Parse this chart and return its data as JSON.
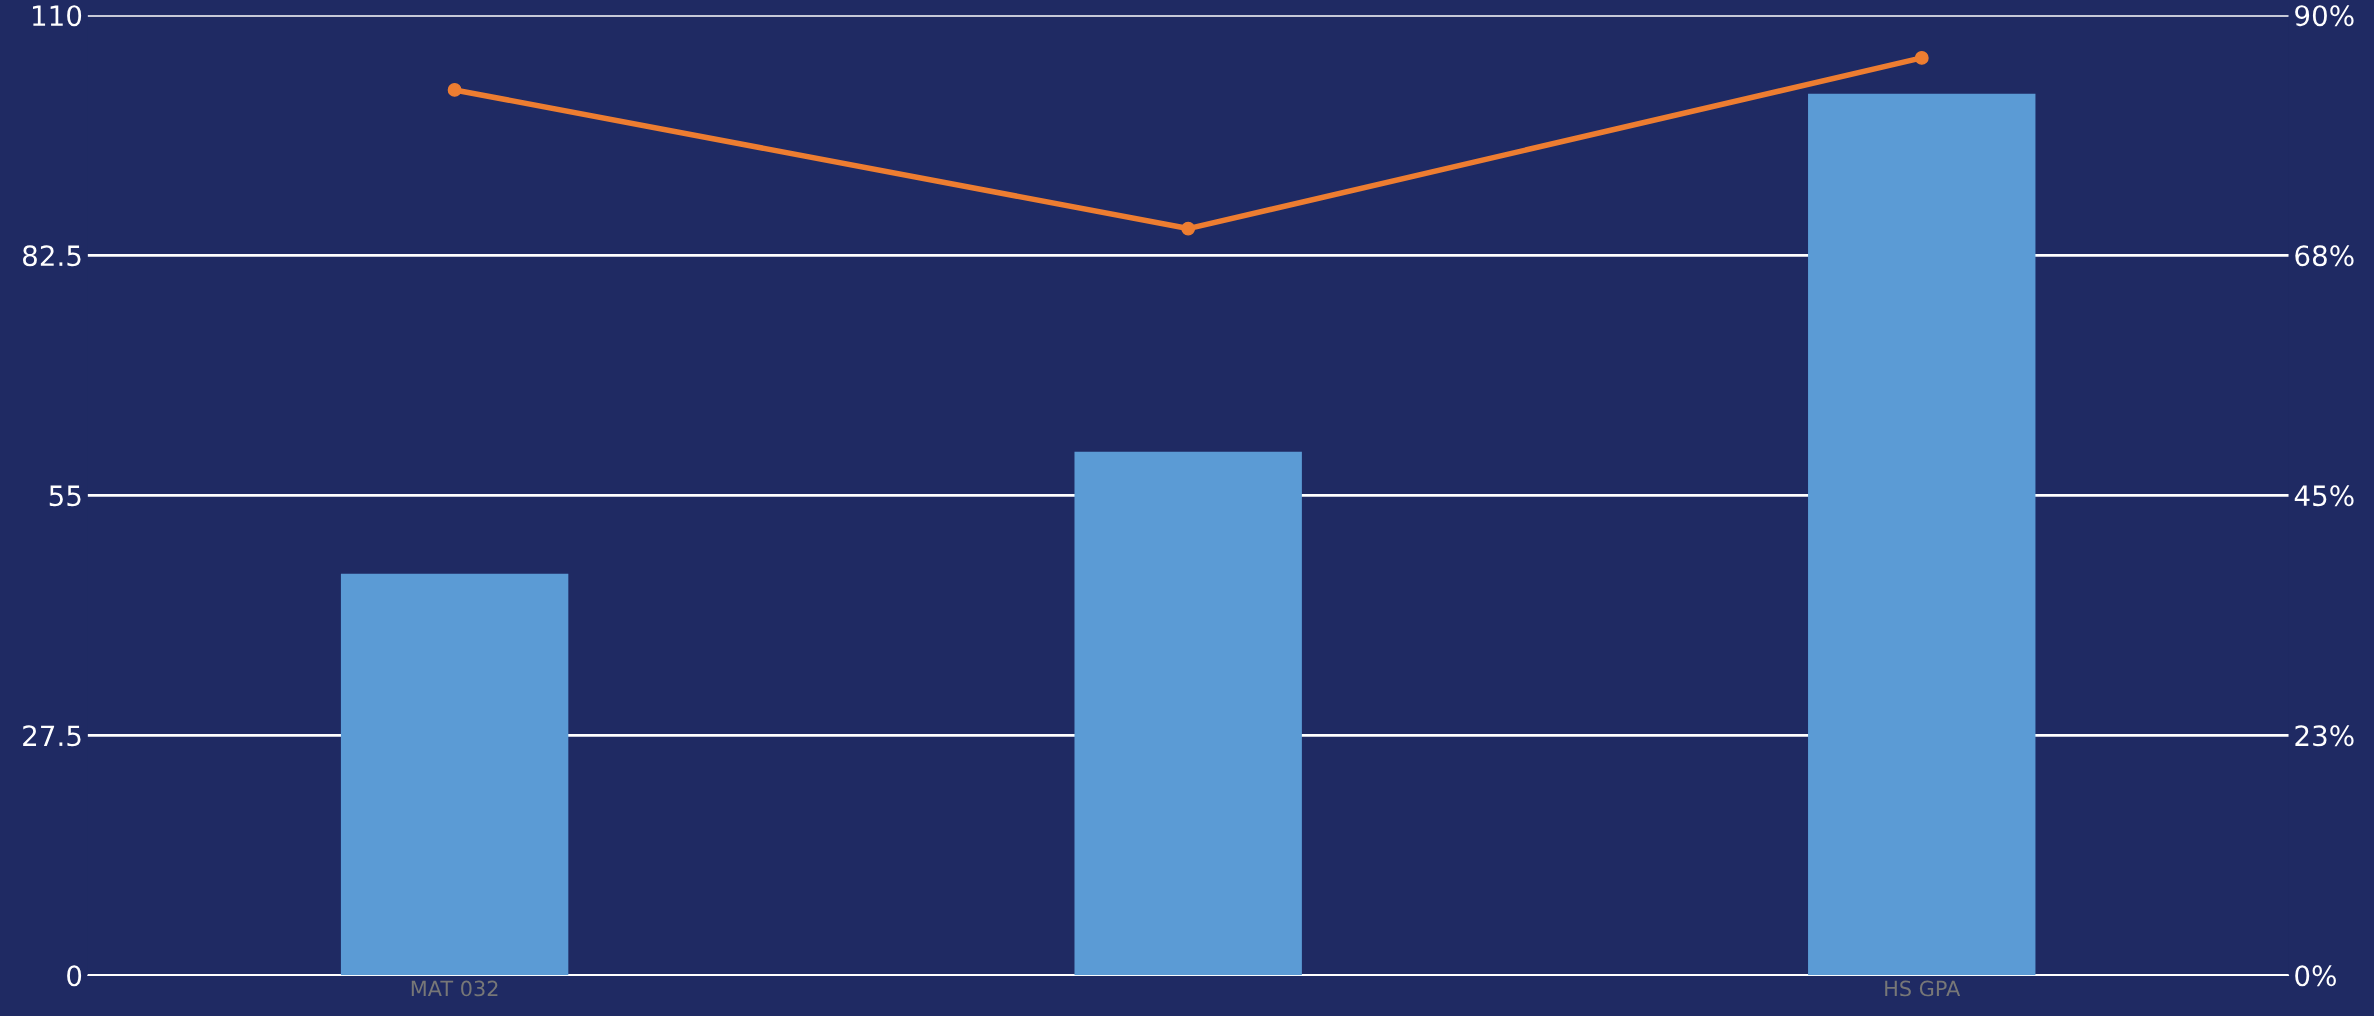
{
  "chart_data": {
    "type": "bar",
    "categories": [
      "MAT 032",
      null,
      "HS GPA"
    ],
    "series": [
      {
        "color": "#5b9bd5",
        "values": [
          46,
          60,
          101
        ]
      },
      {
        "type": "line",
        "axis": "y2",
        "color": "#ed7d31",
        "values": [
          83,
          70,
          86
        ]
      }
    ],
    "ylim": [
      0,
      110
    ],
    "yticks": [
      0,
      27.5,
      55,
      82.5,
      110
    ],
    "y2lim": [
      0,
      90
    ],
    "y2ticks": [
      {
        "value": 0,
        "label": "0%"
      },
      {
        "value": 22.5,
        "label": "23%"
      },
      {
        "value": 45,
        "label": "45%"
      },
      {
        "value": 67.5,
        "label": "68%"
      },
      {
        "value": 90,
        "label": "90%"
      }
    ],
    "grid": "y",
    "marker": "circle",
    "legend": false
  }
}
